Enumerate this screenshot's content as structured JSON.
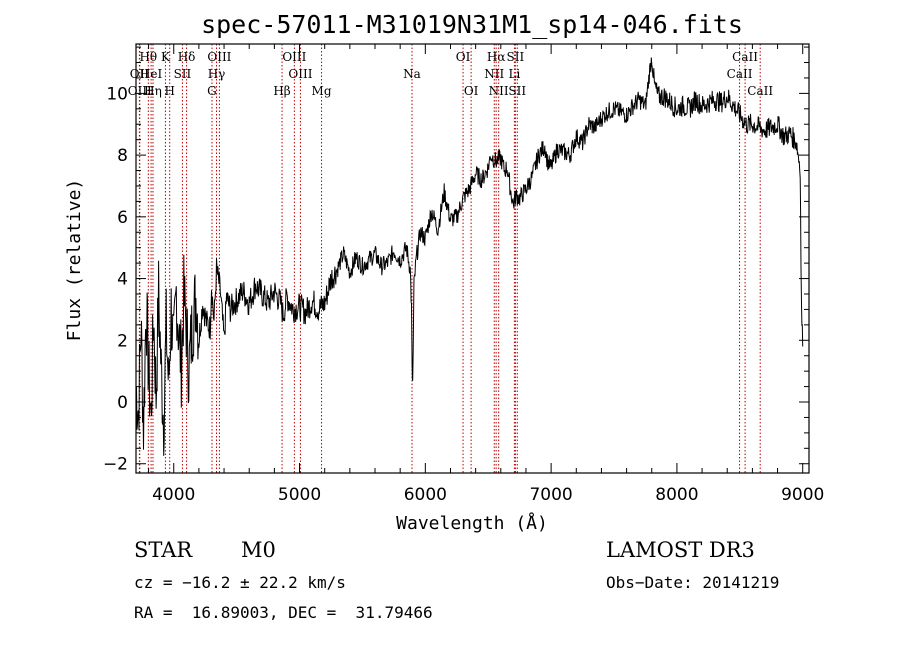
{
  "chart_data": {
    "type": "line",
    "title": "spec-57011-M31019N31M1_sp14-046.fits",
    "xlabel": "Wavelength (Å)",
    "ylabel": "Flux (relative)",
    "xlim": [
      3700,
      9050
    ],
    "ylim": [
      -2.3,
      11.6
    ],
    "xticks": [
      4000,
      5000,
      6000,
      7000,
      8000,
      9000
    ],
    "yticks": [
      -2,
      0,
      2,
      4,
      6,
      8,
      10
    ],
    "series": [
      {
        "name": "flux",
        "x": [
          3700,
          3720,
          3740,
          3760,
          3780,
          3800,
          3820,
          3840,
          3860,
          3880,
          3900,
          3920,
          3940,
          3960,
          3980,
          4000,
          4020,
          4040,
          4060,
          4080,
          4100,
          4120,
          4150,
          4180,
          4200,
          4230,
          4260,
          4290,
          4300,
          4320,
          4340,
          4370,
          4400,
          4420,
          4450,
          4500,
          4550,
          4600,
          4650,
          4700,
          4750,
          4800,
          4850,
          4870,
          4900,
          4950,
          5000,
          5050,
          5100,
          5150,
          5200,
          5250,
          5300,
          5350,
          5400,
          5450,
          5500,
          5550,
          5600,
          5650,
          5700,
          5750,
          5800,
          5850,
          5880,
          5890,
          5895,
          5900,
          5910,
          5930,
          5960,
          6000,
          6050,
          6100,
          6150,
          6200,
          6250,
          6300,
          6350,
          6400,
          6450,
          6500,
          6520,
          6560,
          6600,
          6630,
          6650,
          6680,
          6700,
          6720,
          6750,
          6800,
          6850,
          6900,
          6950,
          6970,
          7000,
          7050,
          7100,
          7150,
          7200,
          7250,
          7300,
          7350,
          7400,
          7450,
          7500,
          7550,
          7600,
          7650,
          7700,
          7750,
          7780,
          7800,
          7820,
          7850,
          7900,
          7950,
          8000,
          8050,
          8100,
          8150,
          8200,
          8250,
          8300,
          8350,
          8400,
          8450,
          8500,
          8550,
          8600,
          8650,
          8700,
          8750,
          8800,
          8850,
          8900,
          8950,
          8980,
          8990,
          9000
        ],
        "y": [
          0.5,
          -0.3,
          2.5,
          -0.8,
          3.2,
          1.0,
          -0.5,
          2.8,
          0.2,
          3.5,
          1.0,
          -0.6,
          2.4,
          0.5,
          3.0,
          1.5,
          3.6,
          2.2,
          1.2,
          3.4,
          2.5,
          1.0,
          2.6,
          3.5,
          2.0,
          3.2,
          2.6,
          2.4,
          3.8,
          2.6,
          4.3,
          3.6,
          2.0,
          3.4,
          3.0,
          3.3,
          3.6,
          3.2,
          3.8,
          3.5,
          3.2,
          3.6,
          3.2,
          2.8,
          3.4,
          3.0,
          3.1,
          2.9,
          3.3,
          3.0,
          3.2,
          4.0,
          4.3,
          4.8,
          4.2,
          4.7,
          4.4,
          4.6,
          4.8,
          4.4,
          4.5,
          4.9,
          4.6,
          5.0,
          4.3,
          3.0,
          1.0,
          0.6,
          3.8,
          4.7,
          5.5,
          5.3,
          6.2,
          5.6,
          6.8,
          5.9,
          6.0,
          6.6,
          6.9,
          7.4,
          7.2,
          7.6,
          8.0,
          7.8,
          7.9,
          7.5,
          7.6,
          6.8,
          6.4,
          6.7,
          6.6,
          6.9,
          7.3,
          8.0,
          8.3,
          7.8,
          7.6,
          8.2,
          8.1,
          8.0,
          8.6,
          8.4,
          9.0,
          8.9,
          9.2,
          9.4,
          9.5,
          9.4,
          9.3,
          9.6,
          9.8,
          9.6,
          10.6,
          11.2,
          10.3,
          9.9,
          9.9,
          9.7,
          9.5,
          9.6,
          9.5,
          9.8,
          9.6,
          9.7,
          9.8,
          9.7,
          9.9,
          9.6,
          9.3,
          9.0,
          9.0,
          8.9,
          8.8,
          8.9,
          9.0,
          8.6,
          8.7,
          8.4,
          7.6,
          3.0,
          1.8
        ]
      }
    ],
    "lines": [
      {
        "label": "Hθ",
        "x": 3798,
        "row": 1
      },
      {
        "label": "OII",
        "x": 3727,
        "row": 2
      },
      {
        "label": "OIII",
        "x": 3730,
        "row": 3
      },
      {
        "label": "HeI",
        "x": 3820,
        "row": 2
      },
      {
        "label": "Hη",
        "x": 3835,
        "row": 3
      },
      {
        "label": "K",
        "x": 3934,
        "row": 1
      },
      {
        "label": "SII",
        "x": 4069,
        "row": 2
      },
      {
        "label": "Hδ",
        "x": 4102,
        "row": 1
      },
      {
        "label": "H",
        "x": 3968,
        "row": 3
      },
      {
        "label": "OIII",
        "x": 4363,
        "row": 1
      },
      {
        "label": "Hγ",
        "x": 4340,
        "row": 2
      },
      {
        "label": "G",
        "x": 4304,
        "row": 3
      },
      {
        "label": "OIII",
        "x": 4959,
        "row": 1
      },
      {
        "label": "OIII",
        "x": 5007,
        "row": 2
      },
      {
        "label": "Hβ",
        "x": 4861,
        "row": 3
      },
      {
        "label": "Mg",
        "x": 5175,
        "row": 3
      },
      {
        "label": "Na",
        "x": 5894,
        "row": 2
      },
      {
        "label": "OI",
        "x": 6300,
        "row": 1
      },
      {
        "label": "OI",
        "x": 6364,
        "row": 3
      },
      {
        "label": "Hα",
        "x": 6563,
        "row": 1
      },
      {
        "label": "NII",
        "x": 6548,
        "row": 2
      },
      {
        "label": "NII",
        "x": 6583,
        "row": 3
      },
      {
        "label": "SII",
        "x": 6716,
        "row": 1
      },
      {
        "label": "Li",
        "x": 6708,
        "row": 2
      },
      {
        "label": "SII",
        "x": 6731,
        "row": 3
      },
      {
        "label": "CaII",
        "x": 8542,
        "row": 1
      },
      {
        "label": "CaII",
        "x": 8498,
        "row": 2
      },
      {
        "label": "CaII",
        "x": 8662,
        "row": 3
      }
    ]
  },
  "info": {
    "object_class": "STAR",
    "subclass": "M0",
    "survey": "LAMOST DR3",
    "cz": "cz = −16.2 ± 22.2 km/s",
    "obs_date": "Obs−Date: 20141219",
    "coords": "RA =  16.89003, DEC =  31.79466"
  },
  "colors": {
    "axis": "#000000",
    "line_marker": "#c00000",
    "spectrum": "#000000"
  }
}
